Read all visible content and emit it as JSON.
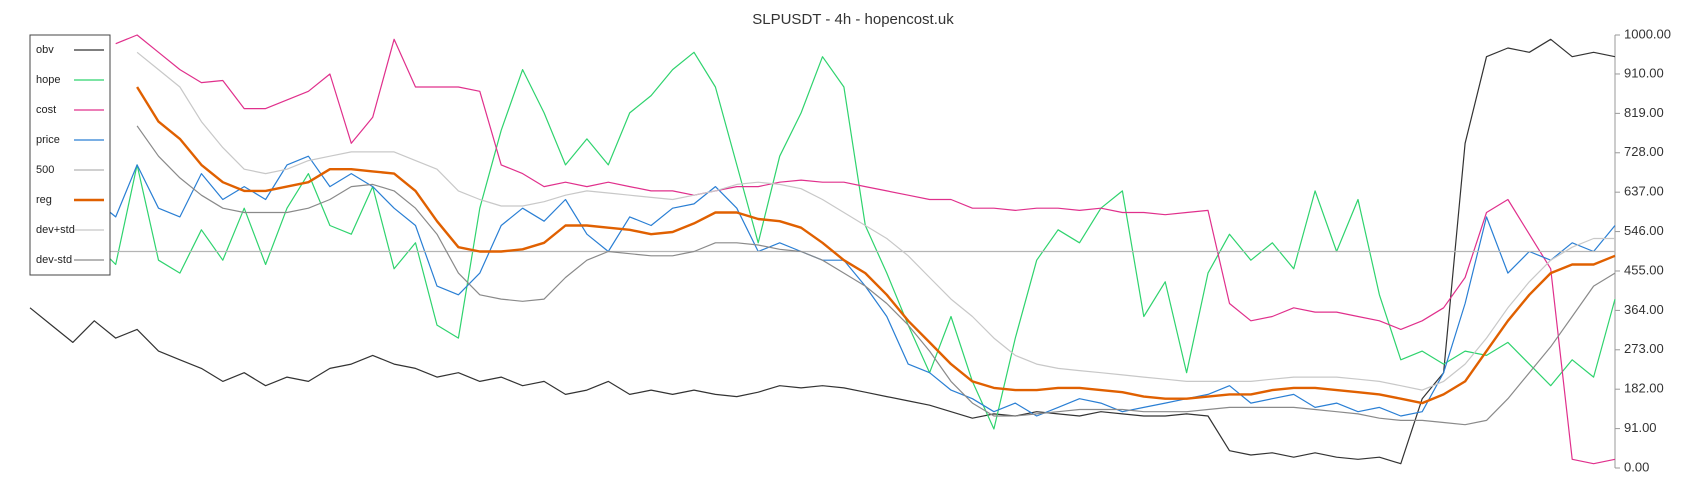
{
  "chart_data": {
    "type": "line",
    "title": "SLPUSDT - 4h - hopencost.uk",
    "ylim": [
      0,
      1000
    ],
    "yticks": [
      {
        "value": 0,
        "label": "0.00"
      },
      {
        "value": 91,
        "label": "91.00"
      },
      {
        "value": 182,
        "label": "182.00"
      },
      {
        "value": 273,
        "label": "273.00"
      },
      {
        "value": 364,
        "label": "364.00"
      },
      {
        "value": 455,
        "label": "455.00"
      },
      {
        "value": 546,
        "label": "546.00"
      },
      {
        "value": 637,
        "label": "637.00"
      },
      {
        "value": 728,
        "label": "728.00"
      },
      {
        "value": 819,
        "label": "819.00"
      },
      {
        "value": 910,
        "label": "910.00"
      },
      {
        "value": 1000,
        "label": "1000.00"
      }
    ],
    "legend": "upper left",
    "series": [
      {
        "name": "obv",
        "color": "#333333",
        "linewidth": 1.2,
        "values": [
          370,
          330,
          290,
          340,
          300,
          320,
          270,
          250,
          230,
          200,
          220,
          190,
          210,
          200,
          230,
          240,
          260,
          240,
          230,
          210,
          220,
          200,
          210,
          190,
          200,
          170,
          180,
          200,
          170,
          180,
          170,
          180,
          170,
          165,
          175,
          190,
          185,
          190,
          185,
          175,
          165,
          155,
          145,
          130,
          115,
          125,
          120,
          130,
          125,
          120,
          130,
          125,
          120,
          120,
          125,
          120,
          40,
          30,
          35,
          25,
          35,
          25,
          20,
          25,
          10,
          160,
          220,
          750,
          950,
          970,
          960,
          990,
          950,
          960,
          950
        ]
      },
      {
        "name": "hope",
        "color": "#2fd36e",
        "linewidth": 1.2,
        "values": [
          800,
          600,
          650,
          520,
          470,
          700,
          480,
          450,
          550,
          480,
          600,
          470,
          600,
          680,
          560,
          540,
          650,
          460,
          520,
          330,
          300,
          600,
          780,
          920,
          820,
          700,
          760,
          700,
          820,
          860,
          920,
          960,
          880,
          700,
          520,
          720,
          820,
          950,
          880,
          560,
          450,
          330,
          220,
          350,
          200,
          90,
          300,
          480,
          550,
          520,
          600,
          640,
          350,
          430,
          220,
          450,
          540,
          480,
          520,
          460,
          640,
          500,
          620,
          400,
          250,
          270,
          240,
          270,
          260,
          290,
          240,
          190,
          250,
          210,
          390
        ]
      },
      {
        "name": "cost",
        "color": "#e0308c",
        "linewidth": 1.2,
        "values": [
          null,
          null,
          null,
          null,
          980,
          1000,
          960,
          920,
          890,
          895,
          830,
          830,
          850,
          870,
          910,
          750,
          810,
          990,
          880,
          880,
          880,
          870,
          700,
          680,
          650,
          660,
          650,
          660,
          650,
          640,
          640,
          630,
          640,
          650,
          650,
          660,
          665,
          660,
          660,
          650,
          640,
          630,
          620,
          620,
          600,
          600,
          595,
          600,
          600,
          595,
          600,
          590,
          590,
          585,
          590,
          595,
          380,
          340,
          350,
          370,
          360,
          360,
          350,
          340,
          320,
          340,
          370,
          440,
          590,
          620,
          540,
          460,
          20,
          10,
          20
        ]
      },
      {
        "name": "price",
        "color": "#2a7fd4",
        "linewidth": 1.2,
        "values": [
          790,
          700,
          780,
          620,
          580,
          700,
          600,
          580,
          680,
          620,
          650,
          620,
          700,
          720,
          650,
          680,
          650,
          600,
          560,
          420,
          400,
          450,
          560,
          600,
          570,
          620,
          540,
          500,
          580,
          560,
          600,
          610,
          650,
          600,
          500,
          520,
          500,
          480,
          480,
          420,
          350,
          240,
          220,
          180,
          160,
          130,
          150,
          120,
          140,
          160,
          150,
          130,
          140,
          150,
          160,
          170,
          190,
          150,
          160,
          170,
          140,
          150,
          130,
          140,
          120,
          130,
          220,
          380,
          580,
          450,
          500,
          480,
          520,
          500,
          560
        ]
      },
      {
        "name": "500",
        "color": "#b4b4b4",
        "linewidth": 1.2,
        "hline": 500
      },
      {
        "name": "reg",
        "color": "#e06000",
        "linewidth": 2.4,
        "values": [
          null,
          null,
          null,
          null,
          null,
          880,
          800,
          760,
          700,
          660,
          640,
          640,
          650,
          660,
          690,
          690,
          685,
          680,
          640,
          570,
          510,
          500,
          500,
          505,
          520,
          560,
          560,
          555,
          550,
          540,
          545,
          565,
          590,
          590,
          575,
          570,
          555,
          520,
          480,
          450,
          400,
          340,
          290,
          240,
          200,
          185,
          180,
          180,
          185,
          185,
          180,
          175,
          165,
          160,
          160,
          165,
          170,
          170,
          180,
          185,
          185,
          180,
          175,
          170,
          160,
          150,
          170,
          200,
          270,
          340,
          400,
          450,
          470,
          470,
          490
        ]
      },
      {
        "name": "dev+std",
        "color": "#c8c8c8",
        "linewidth": 1.2,
        "values": [
          null,
          null,
          null,
          null,
          null,
          960,
          920,
          880,
          800,
          740,
          690,
          680,
          690,
          710,
          720,
          730,
          730,
          730,
          710,
          690,
          640,
          620,
          605,
          605,
          615,
          630,
          640,
          635,
          630,
          625,
          620,
          630,
          640,
          655,
          660,
          655,
          645,
          620,
          590,
          560,
          530,
          490,
          440,
          390,
          350,
          300,
          260,
          240,
          230,
          225,
          220,
          215,
          210,
          205,
          200,
          200,
          200,
          200,
          205,
          210,
          210,
          210,
          205,
          200,
          190,
          180,
          200,
          240,
          300,
          370,
          430,
          480,
          510,
          530,
          530
        ]
      },
      {
        "name": "dev-std",
        "color": "#8a8a8a",
        "linewidth": 1.2,
        "values": [
          null,
          null,
          null,
          null,
          null,
          790,
          720,
          670,
          630,
          600,
          590,
          590,
          590,
          600,
          620,
          650,
          655,
          640,
          600,
          540,
          450,
          400,
          390,
          385,
          390,
          440,
          480,
          500,
          495,
          490,
          490,
          500,
          520,
          520,
          515,
          505,
          500,
          480,
          450,
          420,
          380,
          330,
          270,
          200,
          150,
          120,
          120,
          125,
          130,
          135,
          135,
          135,
          130,
          130,
          130,
          135,
          140,
          140,
          140,
          140,
          135,
          130,
          125,
          115,
          110,
          110,
          105,
          100,
          110,
          160,
          220,
          280,
          350,
          420,
          450
        ]
      }
    ]
  }
}
